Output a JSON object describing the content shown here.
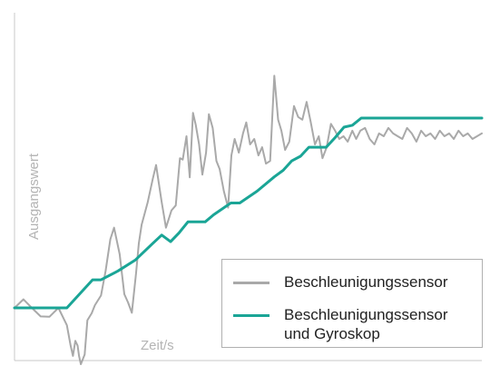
{
  "chart_data": {
    "type": "line",
    "title": "",
    "xlabel": "Zeit/s",
    "ylabel": "Ausgangswert",
    "xlim": [
      0,
      100
    ],
    "ylim": [
      0,
      100
    ],
    "grid": false,
    "axes_style": "bottom and left axes only, no tick labels",
    "legend_position": "bottom-right",
    "series": [
      {
        "name": "Beschleunigungssensor",
        "color": "#a9a9a9",
        "x": [
          0.0,
          1.9,
          3.7,
          5.6,
          7.5,
          9.4,
          11.2,
          12.0,
          12.5,
          13.0,
          13.5,
          13.8,
          14.2,
          15.0,
          15.6,
          16.5,
          17.2,
          18.5,
          19.5,
          20.5,
          21.3,
          22.5,
          23.5,
          24.3,
          25.1,
          26.0,
          26.6,
          27.2,
          28.5,
          29.6,
          30.3,
          31.5,
          32.4,
          33.6,
          34.5,
          35.4,
          36.0,
          36.8,
          37.5,
          38.2,
          38.8,
          39.5,
          40.2,
          41.0,
          41.6,
          42.4,
          43.2,
          43.9,
          44.8,
          45.7,
          46.4,
          47.1,
          48.0,
          48.9,
          49.6,
          50.4,
          51.3,
          52.2,
          53.0,
          53.8,
          54.7,
          55.6,
          56.4,
          57.1,
          57.9,
          58.8,
          59.8,
          60.7,
          61.6,
          62.5,
          63.4,
          64.3,
          65.1,
          65.9,
          66.8,
          67.7,
          68.6,
          69.5,
          70.4,
          71.3,
          72.3,
          73.1,
          74.0,
          75.0,
          76.0,
          77.0,
          78.0,
          79.0,
          80.0,
          81.0,
          82.0,
          83.0,
          84.0,
          85.0,
          86.0,
          87.0,
          88.0,
          89.0,
          90.0,
          91.0,
          92.0,
          93.0,
          94.0,
          95.0,
          96.0,
          97.0,
          98.0,
          100.0
        ],
        "values": [
          17.5,
          20.6,
          17.5,
          14.4,
          14.3,
          17.5,
          11.2,
          3.8,
          0.0,
          5.5,
          3.8,
          0.0,
          -3.0,
          0.5,
          13.0,
          15.5,
          18.5,
          22.0,
          31.0,
          42.5,
          46.7,
          37.0,
          22.5,
          19.5,
          15.7,
          30.0,
          41.0,
          47.8,
          56.0,
          64.5,
          69.5,
          56.0,
          46.7,
          53.0,
          54.8,
          72.0,
          71.5,
          80.0,
          65.0,
          88.5,
          84.0,
          77.0,
          66.0,
          74.0,
          88.0,
          83.0,
          71.0,
          68.0,
          60.0,
          54.0,
          73.0,
          79.0,
          74.0,
          81.0,
          85.0,
          77.0,
          79.0,
          73.0,
          76.0,
          70.0,
          71.0,
          102.0,
          86.0,
          82.0,
          75.0,
          78.0,
          91.0,
          87.0,
          86.0,
          92.5,
          85.0,
          77.0,
          80.0,
          72.0,
          76.0,
          84.5,
          82.0,
          79.0,
          80.0,
          78.0,
          82.0,
          79.0,
          82.0,
          83.0,
          79.0,
          77.0,
          81.0,
          80.0,
          83.0,
          81.0,
          80.0,
          79.0,
          83.0,
          81.0,
          78.0,
          82.0,
          80.0,
          81.0,
          79.0,
          82.0,
          80.0,
          81.0,
          79.0,
          82.0,
          80.0,
          81.0,
          79.0,
          81.0
        ]
      },
      {
        "name": "Beschleunigungssensor\nund Gyroskop",
        "color": "#1aa596",
        "x": [
          0.0,
          11.2,
          16.7,
          18.5,
          22.2,
          25.9,
          29.6,
          31.5,
          33.4,
          35.2,
          37.1,
          40.8,
          42.6,
          46.3,
          48.2,
          51.9,
          55.6,
          57.5,
          59.3,
          61.2,
          63.0,
          66.7,
          68.6,
          70.5,
          72.3,
          74.2,
          77.9,
          81.6,
          85.3,
          89.0,
          92.7,
          96.4,
          100.0
        ],
        "values": [
          17.5,
          17.5,
          27.7,
          27.7,
          31.0,
          35.0,
          41.0,
          44.0,
          41.6,
          44.8,
          48.8,
          48.8,
          51.4,
          55.7,
          55.7,
          60.0,
          65.2,
          67.6,
          71.0,
          72.7,
          76.0,
          76.0,
          79.5,
          83.3,
          84.0,
          86.6,
          86.6,
          86.6,
          86.6,
          86.6,
          86.6,
          86.6,
          86.6
        ]
      }
    ]
  }
}
